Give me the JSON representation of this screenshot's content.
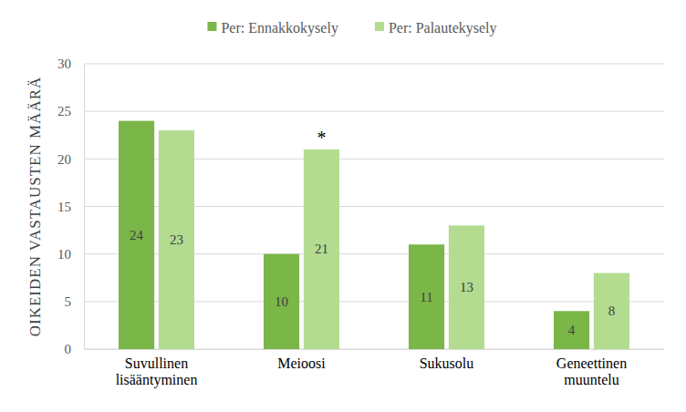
{
  "chart_data": {
    "type": "bar",
    "y_label": "OIKEIDEN VASTAUSTEN MÄÄRÄ",
    "categories": [
      "Suvullinen lisääntyminen",
      "Meioosi",
      "Sukusolu",
      "Geneettinen muuntelu"
    ],
    "series": [
      {
        "name": "Per: Ennakkokysely",
        "color": "#7ab648",
        "values": [
          24,
          10,
          11,
          4
        ]
      },
      {
        "name": "Per: Palautekysely",
        "color": "#b3dc91",
        "values": [
          23,
          21,
          13,
          8
        ]
      }
    ],
    "ylim": [
      0,
      30
    ],
    "yticks": [
      0,
      5,
      10,
      15,
      20,
      25,
      30
    ],
    "grid": true,
    "legend": "top",
    "data_labels": true,
    "annotations": [
      {
        "text": "*",
        "category": "Meioosi",
        "series": "Per: Palautekysely"
      }
    ]
  }
}
